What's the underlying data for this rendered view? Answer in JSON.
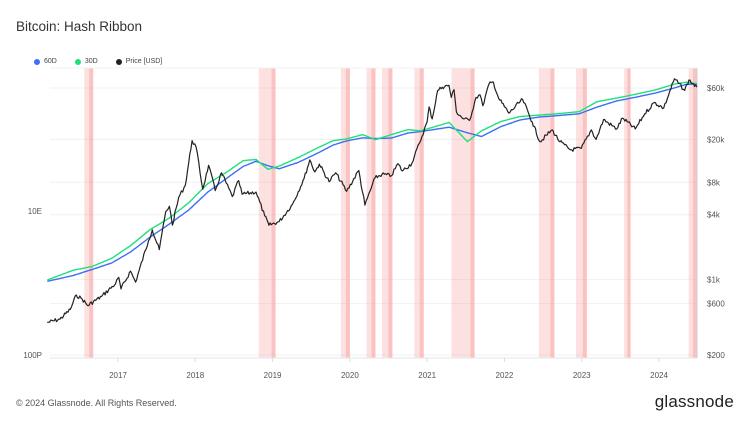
{
  "title": "Bitcoin: Hash Ribbon",
  "footer": "© 2024 Glassnode. All Rights Reserved.",
  "logo": "glassnode",
  "chart_data": {
    "type": "line",
    "title": "Bitcoin: Hash Ribbon",
    "legend_position": "top-left",
    "grid": true,
    "series": [
      {
        "name": "60D",
        "color": "#3d6ef5",
        "axis": "left",
        "offset_ratio": 0.96
      },
      {
        "name": "30D",
        "color": "#1ee07a",
        "axis": "left"
      },
      {
        "name": "Price [USD]",
        "color": "#222222",
        "axis": "right"
      }
    ],
    "hash_rate_30d_EHs": [
      [
        "2016-02-01",
        1.1
      ],
      [
        "2016-06-01",
        1.5
      ],
      [
        "2016-09-01",
        1.7
      ],
      [
        "2016-12-01",
        2.2
      ],
      [
        "2017-03-01",
        3.3
      ],
      [
        "2017-06-01",
        5.5
      ],
      [
        "2017-09-01",
        8
      ],
      [
        "2017-12-01",
        13
      ],
      [
        "2018-03-01",
        24
      ],
      [
        "2018-06-01",
        35
      ],
      [
        "2018-08-15",
        50
      ],
      [
        "2018-10-15",
        52
      ],
      [
        "2018-12-10",
        38
      ],
      [
        "2019-02-01",
        42
      ],
      [
        "2019-05-01",
        55
      ],
      [
        "2019-08-01",
        75
      ],
      [
        "2019-10-15",
        95
      ],
      [
        "2019-12-15",
        100
      ],
      [
        "2020-03-01",
        115
      ],
      [
        "2020-05-01",
        98
      ],
      [
        "2020-07-15",
        115
      ],
      [
        "2020-10-01",
        135
      ],
      [
        "2020-12-01",
        130
      ],
      [
        "2021-04-15",
        170
      ],
      [
        "2021-07-10",
        92
      ],
      [
        "2021-09-15",
        130
      ],
      [
        "2021-12-15",
        175
      ],
      [
        "2022-03-15",
        205
      ],
      [
        "2022-06-15",
        215
      ],
      [
        "2022-09-15",
        225
      ],
      [
        "2022-12-20",
        240
      ],
      [
        "2023-03-15",
        330
      ],
      [
        "2023-06-15",
        370
      ],
      [
        "2023-09-15",
        420
      ],
      [
        "2023-12-15",
        480
      ],
      [
        "2024-03-15",
        580
      ],
      [
        "2024-05-10",
        615
      ],
      [
        "2024-06-28",
        590
      ]
    ],
    "price_usd": [
      [
        "2016-02-01",
        400
      ],
      [
        "2016-04-01",
        430
      ],
      [
        "2016-05-20",
        530
      ],
      [
        "2016-06-17",
        720
      ],
      [
        "2016-07-15",
        660
      ],
      [
        "2016-08-10",
        575
      ],
      [
        "2016-10-15",
        700
      ],
      [
        "2016-12-20",
        920
      ],
      [
        "2017-01-05",
        1050
      ],
      [
        "2017-01-15",
        820
      ],
      [
        "2017-03-01",
        1200
      ],
      [
        "2017-03-25",
        950
      ],
      [
        "2017-05-25",
        2300
      ],
      [
        "2017-06-12",
        2900
      ],
      [
        "2017-07-15",
        1900
      ],
      [
        "2017-08-15",
        4300
      ],
      [
        "2017-09-01",
        4800
      ],
      [
        "2017-09-15",
        3200
      ],
      [
        "2017-10-15",
        5800
      ],
      [
        "2017-11-15",
        7500
      ],
      [
        "2017-12-17",
        19500
      ],
      [
        "2018-01-05",
        17000
      ],
      [
        "2018-02-05",
        6900
      ],
      [
        "2018-03-05",
        11500
      ],
      [
        "2018-04-05",
        6700
      ],
      [
        "2018-05-05",
        9800
      ],
      [
        "2018-06-25",
        5900
      ],
      [
        "2018-07-25",
        8300
      ],
      [
        "2018-08-10",
        6200
      ],
      [
        "2018-10-15",
        6500
      ],
      [
        "2018-11-25",
        3900
      ],
      [
        "2018-12-15",
        3200
      ],
      [
        "2019-02-01",
        3450
      ],
      [
        "2019-04-05",
        5000
      ],
      [
        "2019-05-30",
        8700
      ],
      [
        "2019-06-26",
        12900
      ],
      [
        "2019-07-20",
        10000
      ],
      [
        "2019-08-10",
        11800
      ],
      [
        "2019-09-25",
        8100
      ],
      [
        "2019-10-26",
        9800
      ],
      [
        "2019-12-17",
        6600
      ],
      [
        "2020-02-12",
        10300
      ],
      [
        "2020-03-12",
        4900
      ],
      [
        "2020-04-29",
        8800
      ],
      [
        "2020-06-01",
        9500
      ],
      [
        "2020-07-15",
        9200
      ],
      [
        "2020-08-15",
        11900
      ],
      [
        "2020-09-05",
        10200
      ],
      [
        "2020-10-20",
        12000
      ],
      [
        "2020-11-25",
        18500
      ],
      [
        "2020-12-31",
        29000
      ],
      [
        "2021-01-10",
        40000
      ],
      [
        "2021-01-25",
        31000
      ],
      [
        "2021-02-20",
        57000
      ],
      [
        "2021-03-13",
        61000
      ],
      [
        "2021-04-14",
        63500
      ],
      [
        "2021-04-25",
        49000
      ],
      [
        "2021-05-08",
        58000
      ],
      [
        "2021-05-19",
        36000
      ],
      [
        "2021-06-22",
        31000
      ],
      [
        "2021-07-20",
        30000
      ],
      [
        "2021-08-20",
        49000
      ],
      [
        "2021-09-07",
        52000
      ],
      [
        "2021-09-21",
        41000
      ],
      [
        "2021-10-20",
        65000
      ],
      [
        "2021-11-10",
        68000
      ],
      [
        "2021-12-05",
        48000
      ],
      [
        "2022-01-22",
        35000
      ],
      [
        "2022-03-28",
        47000
      ],
      [
        "2022-05-12",
        29000
      ],
      [
        "2022-06-18",
        19000
      ],
      [
        "2022-08-14",
        24500
      ],
      [
        "2022-09-20",
        19000
      ],
      [
        "2022-11-09",
        16000
      ],
      [
        "2022-12-30",
        16500
      ],
      [
        "2023-02-15",
        24500
      ],
      [
        "2023-03-10",
        20000
      ],
      [
        "2023-04-14",
        30500
      ],
      [
        "2023-06-15",
        25000
      ],
      [
        "2023-07-13",
        31500
      ],
      [
        "2023-09-11",
        25000
      ],
      [
        "2023-10-25",
        34500
      ],
      [
        "2023-12-10",
        44000
      ],
      [
        "2024-01-23",
        39000
      ],
      [
        "2024-03-14",
        73000
      ],
      [
        "2024-05-01",
        57000
      ],
      [
        "2024-05-21",
        71000
      ],
      [
        "2024-06-28",
        61000
      ]
    ],
    "capitulation_periods": [
      [
        "2016-07-25",
        "2016-09-05"
      ],
      [
        "2018-10-28",
        "2019-01-15"
      ],
      [
        "2019-11-20",
        "2020-01-01"
      ],
      [
        "2020-03-20",
        "2020-05-01"
      ],
      [
        "2020-06-01",
        "2020-07-20"
      ],
      [
        "2020-11-01",
        "2020-12-15"
      ],
      [
        "2021-04-26",
        "2021-08-13"
      ],
      [
        "2022-06-13",
        "2022-08-25"
      ],
      [
        "2022-12-05",
        "2023-01-25"
      ],
      [
        "2023-07-20",
        "2023-08-20"
      ],
      [
        "2024-05-20",
        "2024-06-28"
      ]
    ],
    "band_color": "#f9a3a3",
    "x_ticks": [
      "2017",
      "2018",
      "2019",
      "2020",
      "2021",
      "2022",
      "2023",
      "2024"
    ],
    "left_axis": {
      "scale": "log",
      "ticks": [
        {
          "label": "10E",
          "value": 10
        },
        {
          "label": "100P",
          "value": 0.1
        }
      ]
    },
    "right_axis": {
      "scale": "log",
      "ticks": [
        {
          "label": "$60k",
          "value": 60000
        },
        {
          "label": "$20k",
          "value": 20000
        },
        {
          "label": "$8k",
          "value": 8000
        },
        {
          "label": "$4k",
          "value": 4000
        },
        {
          "label": "$1k",
          "value": 1000
        },
        {
          "label": "$600",
          "value": 600
        },
        {
          "label": "$200",
          "value": 200
        }
      ]
    }
  }
}
